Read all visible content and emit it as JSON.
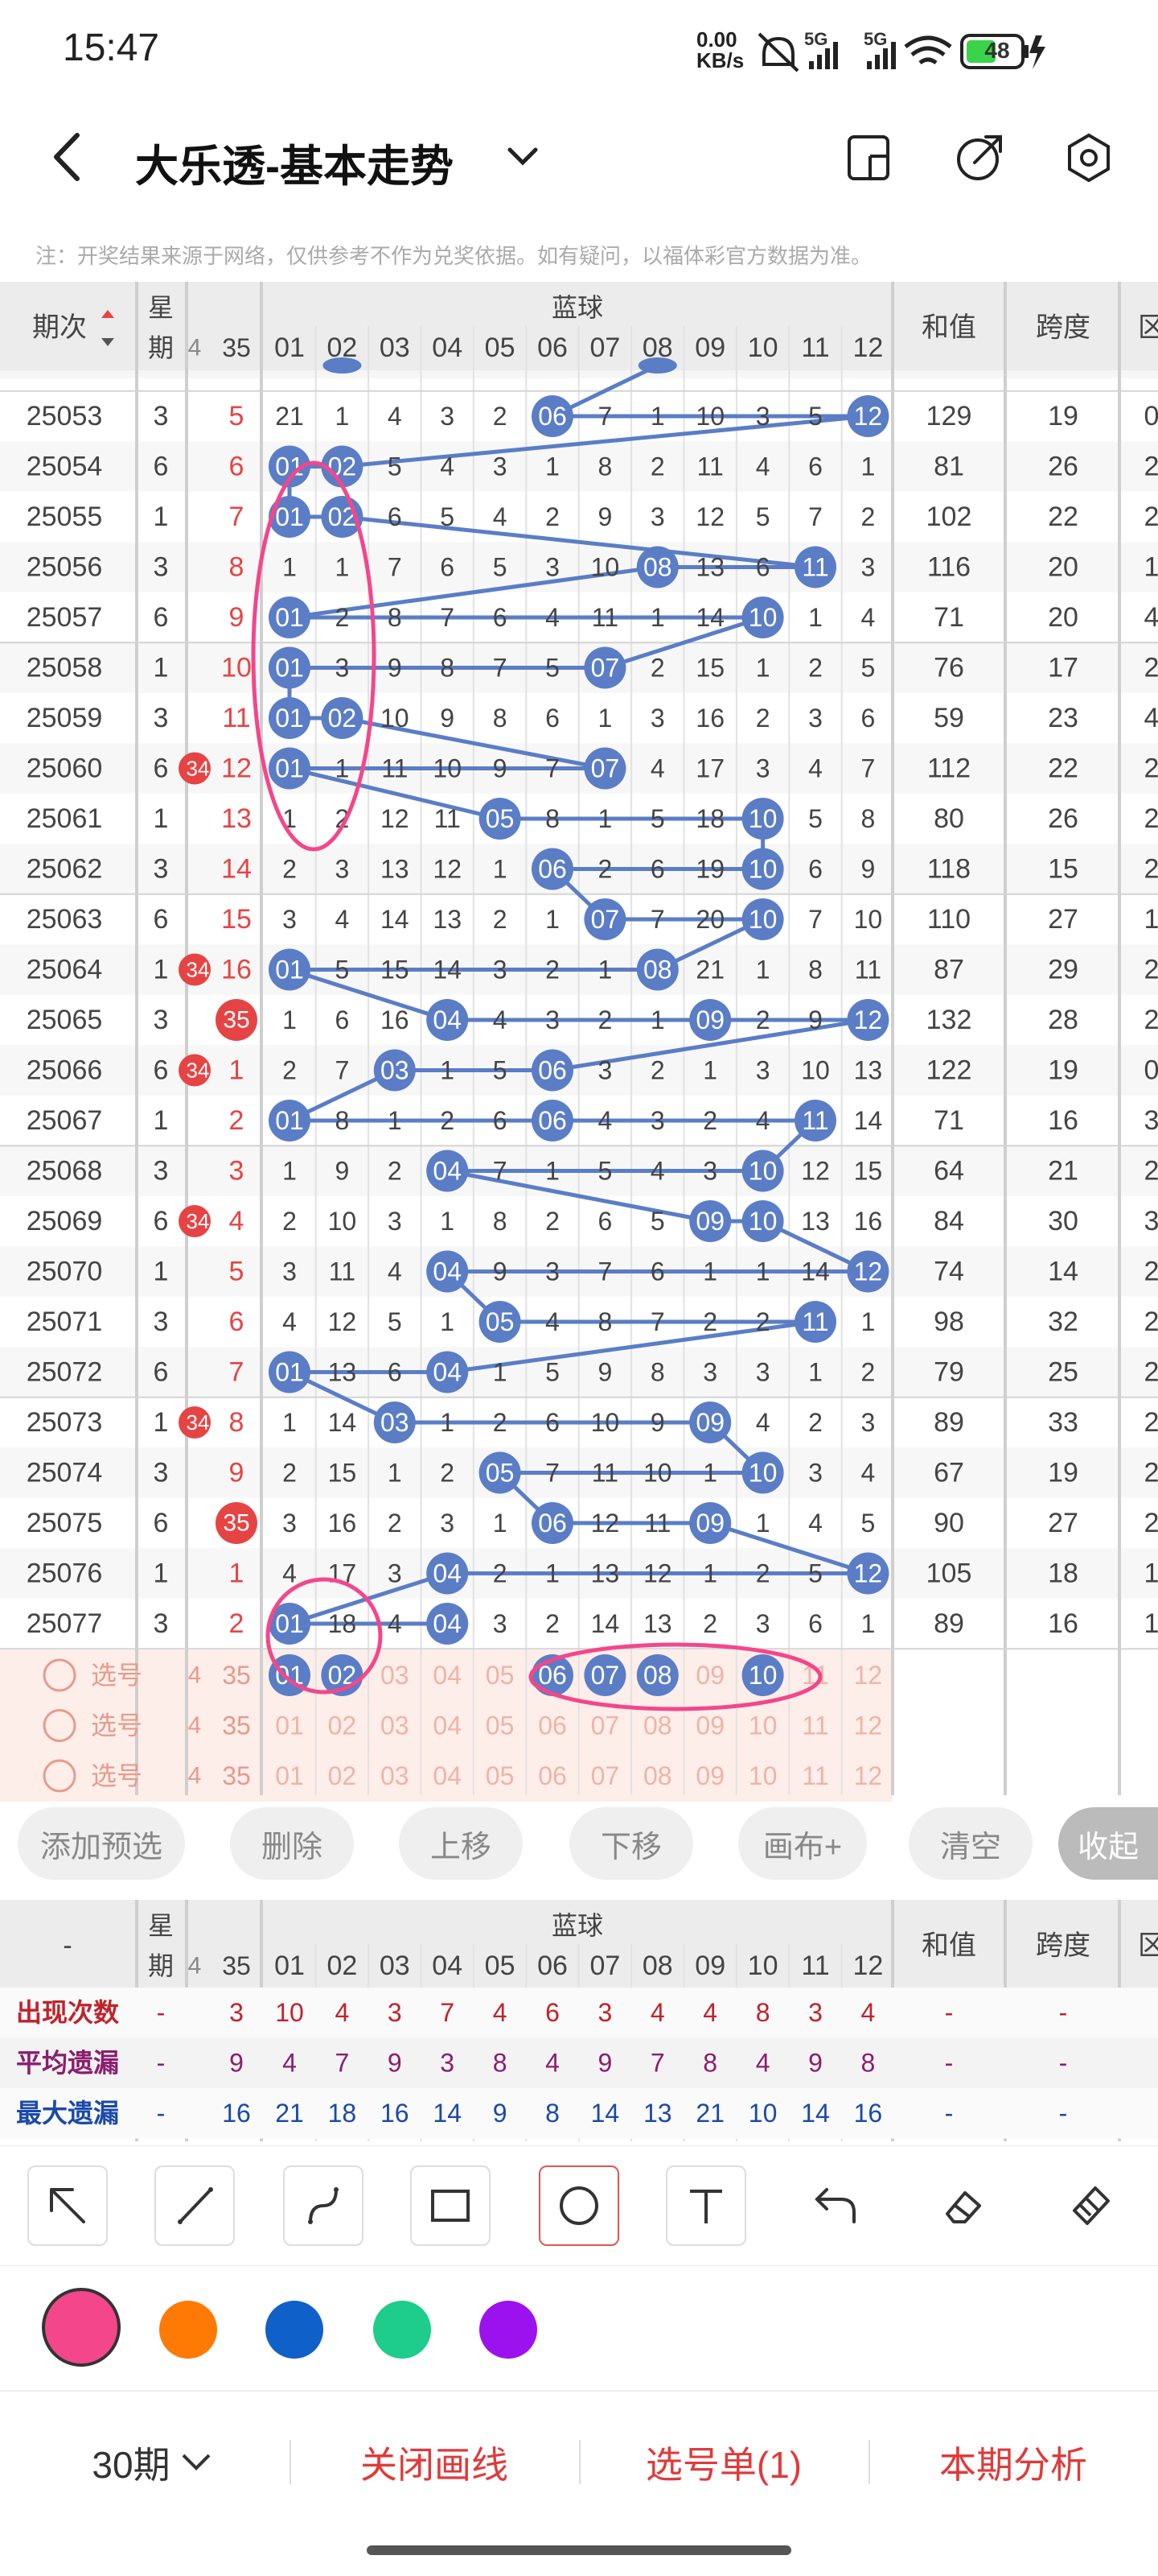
{
  "status_bar": {
    "time": "15:47",
    "net_speed_top": "0.00",
    "net_speed_bottom": "KB/s",
    "sim1": "5G",
    "sim2": "5G",
    "battery": "48"
  },
  "header": {
    "title": "大乐透-基本走势",
    "back_icon": "chevron-left-icon",
    "dropdown_icon": "chevron-down-icon",
    "icons": [
      "tablet-icon",
      "share-icon",
      "settings-icon"
    ]
  },
  "notice": "注：开奖结果来源于网络，仅供参考不作为兑奖依据。如有疑问，以福体彩官方数据为准。",
  "table": {
    "col_period": "期次",
    "col_week": "星期",
    "col_blue": "蓝球",
    "col_sum": "和值",
    "col_span": "跨度",
    "col_extra": "区",
    "front_cut": "4",
    "front_last": "35",
    "blue_numbers": [
      "01",
      "02",
      "03",
      "04",
      "05",
      "06",
      "07",
      "08",
      "09",
      "10",
      "11",
      "12"
    ],
    "rows": [
      {
        "p": "25053",
        "w": "3",
        "fc": "",
        "f35": "5",
        "b": [
          "21",
          "1",
          "4",
          "3",
          "2",
          "06",
          "7",
          "1",
          "10",
          "3",
          "5",
          "12"
        ],
        "s": "129",
        "sp": "19",
        "ex": "0"
      },
      {
        "p": "25054",
        "w": "6",
        "fc": "",
        "f35": "6",
        "b": [
          "01",
          "02",
          "5",
          "4",
          "3",
          "1",
          "8",
          "2",
          "11",
          "4",
          "6",
          "1"
        ],
        "s": "81",
        "sp": "26",
        "ex": "2"
      },
      {
        "p": "25055",
        "w": "1",
        "fc": "",
        "f35": "7",
        "b": [
          "01",
          "02",
          "6",
          "5",
          "4",
          "2",
          "9",
          "3",
          "12",
          "5",
          "7",
          "2"
        ],
        "s": "102",
        "sp": "22",
        "ex": "2"
      },
      {
        "p": "25056",
        "w": "3",
        "fc": "",
        "f35": "8",
        "b": [
          "1",
          "1",
          "7",
          "6",
          "5",
          "3",
          "10",
          "08",
          "13",
          "6",
          "11",
          "3"
        ],
        "s": "116",
        "sp": "20",
        "ex": "1"
      },
      {
        "p": "25057",
        "w": "6",
        "fc": "",
        "f35": "9",
        "b": [
          "01",
          "2",
          "8",
          "7",
          "6",
          "4",
          "11",
          "1",
          "14",
          "10",
          "1",
          "4"
        ],
        "s": "71",
        "sp": "20",
        "ex": "4"
      },
      {
        "p": "25058",
        "w": "1",
        "fc": "",
        "f35": "10",
        "b": [
          "01",
          "3",
          "9",
          "8",
          "7",
          "5",
          "07",
          "2",
          "15",
          "1",
          "2",
          "5"
        ],
        "s": "76",
        "sp": "17",
        "ex": "2"
      },
      {
        "p": "25059",
        "w": "3",
        "fc": "",
        "f35": "11",
        "b": [
          "01",
          "02",
          "10",
          "9",
          "8",
          "6",
          "1",
          "3",
          "16",
          "2",
          "3",
          "6"
        ],
        "s": "59",
        "sp": "23",
        "ex": "4"
      },
      {
        "p": "25060",
        "w": "6",
        "fc": "34",
        "f35": "12",
        "b": [
          "01",
          "1",
          "11",
          "10",
          "9",
          "7",
          "07",
          "4",
          "17",
          "3",
          "4",
          "7"
        ],
        "s": "112",
        "sp": "22",
        "ex": "2"
      },
      {
        "p": "25061",
        "w": "1",
        "fc": "",
        "f35": "13",
        "b": [
          "1",
          "2",
          "12",
          "11",
          "05",
          "8",
          "1",
          "5",
          "18",
          "10",
          "5",
          "8"
        ],
        "s": "80",
        "sp": "26",
        "ex": "2"
      },
      {
        "p": "25062",
        "w": "3",
        "fc": "",
        "f35": "14",
        "b": [
          "2",
          "3",
          "13",
          "12",
          "1",
          "06",
          "2",
          "6",
          "19",
          "10",
          "6",
          "9"
        ],
        "s": "118",
        "sp": "15",
        "ex": "2"
      },
      {
        "p": "25063",
        "w": "6",
        "fc": "",
        "f35": "15",
        "b": [
          "3",
          "4",
          "14",
          "13",
          "2",
          "1",
          "07",
          "7",
          "20",
          "10",
          "7",
          "10"
        ],
        "s": "110",
        "sp": "27",
        "ex": "1"
      },
      {
        "p": "25064",
        "w": "1",
        "fc": "34",
        "f35": "16",
        "b": [
          "01",
          "5",
          "15",
          "14",
          "3",
          "2",
          "1",
          "08",
          "21",
          "1",
          "8",
          "11"
        ],
        "s": "87",
        "sp": "29",
        "ex": "2"
      },
      {
        "p": "25065",
        "w": "3",
        "fc": "",
        "f35": "35",
        "b": [
          "1",
          "6",
          "16",
          "04",
          "4",
          "3",
          "2",
          "1",
          "09",
          "2",
          "9",
          "12"
        ],
        "s": "132",
        "sp": "28",
        "ex": "2"
      },
      {
        "p": "25066",
        "w": "6",
        "fc": "34",
        "f35": "1",
        "b": [
          "2",
          "7",
          "03",
          "1",
          "5",
          "06",
          "3",
          "2",
          "1",
          "3",
          "10",
          "13"
        ],
        "s": "122",
        "sp": "19",
        "ex": "0"
      },
      {
        "p": "25067",
        "w": "1",
        "fc": "",
        "f35": "2",
        "b": [
          "01",
          "8",
          "1",
          "2",
          "6",
          "06",
          "4",
          "3",
          "2",
          "4",
          "11",
          "14"
        ],
        "s": "71",
        "sp": "16",
        "ex": "3"
      },
      {
        "p": "25068",
        "w": "3",
        "fc": "",
        "f35": "3",
        "b": [
          "1",
          "9",
          "2",
          "04",
          "7",
          "1",
          "5",
          "4",
          "3",
          "10",
          "12",
          "15"
        ],
        "s": "64",
        "sp": "21",
        "ex": "2"
      },
      {
        "p": "25069",
        "w": "6",
        "fc": "34",
        "f35": "4",
        "b": [
          "2",
          "10",
          "3",
          "1",
          "8",
          "2",
          "6",
          "5",
          "09",
          "10",
          "13",
          "16"
        ],
        "s": "84",
        "sp": "30",
        "ex": "3"
      },
      {
        "p": "25070",
        "w": "1",
        "fc": "",
        "f35": "5",
        "b": [
          "3",
          "11",
          "4",
          "04",
          "9",
          "3",
          "7",
          "6",
          "1",
          "1",
          "14",
          "12"
        ],
        "s": "74",
        "sp": "14",
        "ex": "2"
      },
      {
        "p": "25071",
        "w": "3",
        "fc": "",
        "f35": "6",
        "b": [
          "4",
          "12",
          "5",
          "1",
          "05",
          "4",
          "8",
          "7",
          "2",
          "2",
          "11",
          "1"
        ],
        "s": "98",
        "sp": "32",
        "ex": "2"
      },
      {
        "p": "25072",
        "w": "6",
        "fc": "",
        "f35": "7",
        "b": [
          "01",
          "13",
          "6",
          "04",
          "1",
          "5",
          "9",
          "8",
          "3",
          "3",
          "1",
          "2"
        ],
        "s": "79",
        "sp": "25",
        "ex": "2"
      },
      {
        "p": "25073",
        "w": "1",
        "fc": "34",
        "f35": "8",
        "b": [
          "1",
          "14",
          "03",
          "1",
          "2",
          "6",
          "10",
          "9",
          "09",
          "4",
          "2",
          "3"
        ],
        "s": "89",
        "sp": "33",
        "ex": "2"
      },
      {
        "p": "25074",
        "w": "3",
        "fc": "",
        "f35": "9",
        "b": [
          "2",
          "15",
          "1",
          "2",
          "05",
          "7",
          "11",
          "10",
          "1",
          "10",
          "3",
          "4"
        ],
        "s": "67",
        "sp": "19",
        "ex": "2"
      },
      {
        "p": "25075",
        "w": "6",
        "fc": "",
        "f35": "35",
        "b": [
          "3",
          "16",
          "2",
          "3",
          "1",
          "06",
          "12",
          "11",
          "09",
          "1",
          "4",
          "5"
        ],
        "s": "90",
        "sp": "27",
        "ex": "2"
      },
      {
        "p": "25076",
        "w": "1",
        "fc": "",
        "f35": "1",
        "b": [
          "4",
          "17",
          "3",
          "04",
          "2",
          "1",
          "13",
          "12",
          "1",
          "2",
          "5",
          "12"
        ],
        "s": "105",
        "sp": "18",
        "ex": "1"
      },
      {
        "p": "25077",
        "w": "3",
        "fc": "",
        "f35": "2",
        "b": [
          "01",
          "18",
          "4",
          "04",
          "3",
          "2",
          "14",
          "13",
          "2",
          "3",
          "6",
          "1"
        ],
        "s": "89",
        "sp": "16",
        "ex": "1"
      }
    ],
    "select_label": "选号",
    "stats": {
      "label_col": "-",
      "rows": [
        {
          "label": "出现次数",
          "w": "-",
          "f35": "3",
          "b": [
            "10",
            "4",
            "3",
            "7",
            "4",
            "6",
            "3",
            "4",
            "4",
            "8",
            "3",
            "4"
          ],
          "s": "-",
          "sp": "-"
        },
        {
          "label": "平均遗漏",
          "w": "-",
          "f35": "9",
          "b": [
            "4",
            "7",
            "9",
            "3",
            "8",
            "4",
            "9",
            "7",
            "8",
            "4",
            "9",
            "8"
          ],
          "s": "-",
          "sp": "-"
        },
        {
          "label": "最大遗漏",
          "w": "-",
          "f35": "16",
          "b": [
            "21",
            "18",
            "16",
            "14",
            "9",
            "8",
            "14",
            "13",
            "21",
            "10",
            "14",
            "16"
          ],
          "s": "-",
          "sp": "-"
        }
      ]
    }
  },
  "actions": {
    "add": "添加预选",
    "delete": "删除",
    "up": "上移",
    "down": "下移",
    "canvas": "画布+",
    "clear": "清空",
    "collapse": "收起"
  },
  "tools": [
    "cursor-arrow-icon",
    "line-icon",
    "curve-icon",
    "rectangle-icon",
    "circle-icon",
    "text-icon",
    "undo-icon",
    "eraser-icon",
    "clear-brush-icon"
  ],
  "colors": {
    "pink": "#f4468a",
    "orange": "#fe7a05",
    "blue": "#0f60c8",
    "green": "#1ecc8c",
    "purple": "#9b12ef",
    "ball": "#5a7dc6",
    "red": "#e64444"
  },
  "bottom": {
    "periods": "30期",
    "close_line": "关闭画线",
    "pick_list": "选号单(1)",
    "analysis": "本期分析"
  }
}
